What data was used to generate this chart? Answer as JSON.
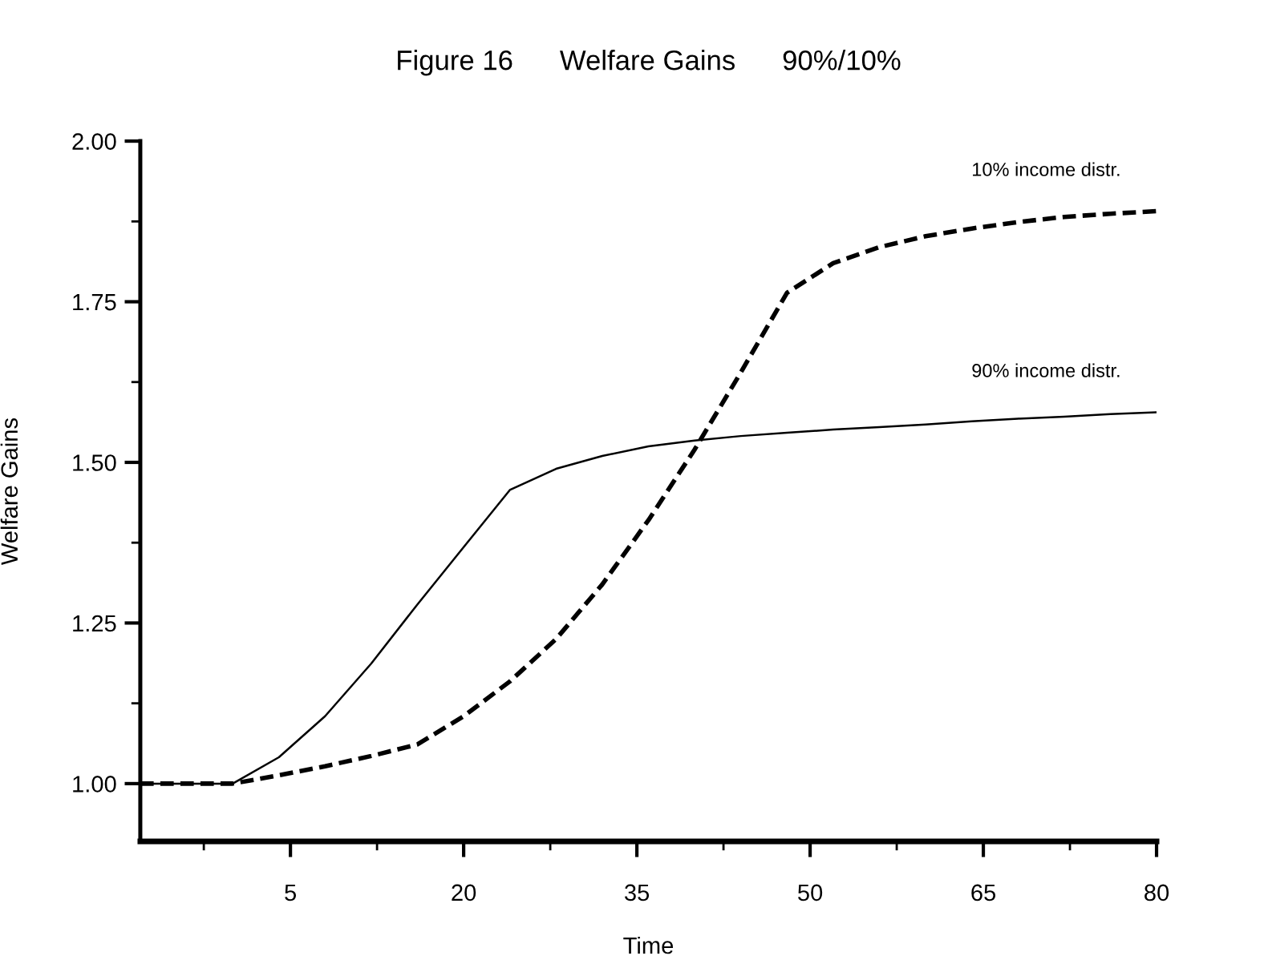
{
  "chart_data": {
    "type": "line",
    "title": "Figure 16      Welfare Gains      90%/10%",
    "xlabel": "Time",
    "ylabel": "Welfare Gains",
    "xlim": [
      -8,
      80
    ],
    "ylim": [
      0.91,
      2.0
    ],
    "xticks": [
      {
        "value": -2.5,
        "label": null
      },
      5,
      {
        "value": 12.5,
        "label": null
      },
      20,
      {
        "value": 27.5,
        "label": null
      },
      35,
      {
        "value": 42.5,
        "label": null
      },
      50,
      {
        "value": 57.5,
        "label": null
      },
      65,
      {
        "value": 72.5,
        "label": null
      },
      80
    ],
    "yticks": [
      {
        "value": 1.0,
        "label": "1.00"
      },
      {
        "value": 1.125,
        "label": null
      },
      {
        "value": 1.25,
        "label": "1.25"
      },
      {
        "value": 1.375,
        "label": null
      },
      {
        "value": 1.5,
        "label": "1.50"
      },
      {
        "value": 1.625,
        "label": null
      },
      {
        "value": 1.75,
        "label": "1.75"
      },
      {
        "value": 1.875,
        "label": null
      },
      {
        "value": 2.0,
        "label": "2.00"
      }
    ],
    "grid": false,
    "legend": false,
    "x": [
      -8,
      0,
      4,
      8,
      12,
      16,
      20,
      24,
      28,
      32,
      36,
      40,
      44,
      48,
      52,
      56,
      60,
      64,
      68,
      72,
      76,
      80
    ],
    "series": [
      {
        "name": "90% income distr.",
        "color": "#000000",
        "line_style": "solid",
        "values": [
          1.0,
          1.0,
          1.041,
          1.105,
          1.187,
          1.279,
          1.368,
          1.457,
          1.49,
          1.51,
          1.525,
          1.534,
          1.541,
          1.546,
          1.551,
          1.555,
          1.559,
          1.564,
          1.568,
          1.571,
          1.575,
          1.578
        ]
      },
      {
        "name": "10% income distr.",
        "color": "#000000",
        "line_style": "dashed",
        "values": [
          1.0,
          1.0,
          1.013,
          1.027,
          1.043,
          1.061,
          1.105,
          1.159,
          1.225,
          1.31,
          1.41,
          1.52,
          1.64,
          1.764,
          1.81,
          1.835,
          1.852,
          1.864,
          1.874,
          1.882,
          1.887,
          1.891
        ]
      }
    ]
  }
}
